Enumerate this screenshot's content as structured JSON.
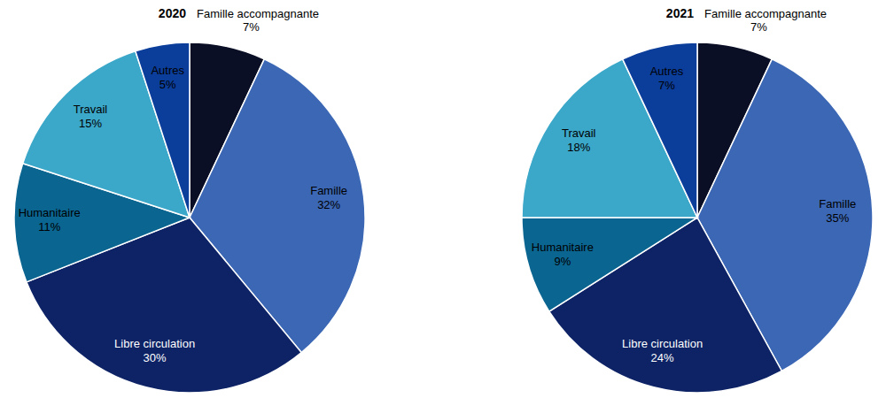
{
  "chart_data": [
    {
      "type": "pie",
      "title": "2020",
      "categories": [
        "Famille accompagnante",
        "Famille",
        "Libre circulation",
        "Humanitaire",
        "Travail",
        "Autres"
      ],
      "values": [
        7,
        32,
        30,
        11,
        15,
        5
      ],
      "value_labels": [
        "7%",
        "32%",
        "30%",
        "11%",
        "15%",
        "5%"
      ],
      "colors": [
        "#0a0f26",
        "#3b67b4",
        "#0d2366",
        "#0a6591",
        "#3ba7c9",
        "#0b3d9b"
      ],
      "data_labels": true
    },
    {
      "type": "pie",
      "title": "2021",
      "categories": [
        "Famille accompagnante",
        "Famille",
        "Libre circulation",
        "Humanitaire",
        "Travail",
        "Autres"
      ],
      "values": [
        7,
        35,
        24,
        9,
        18,
        7
      ],
      "value_labels": [
        "7%",
        "35%",
        "24%",
        "9%",
        "18%",
        "7%"
      ],
      "colors": [
        "#0a0f26",
        "#3b67b4",
        "#0d2366",
        "#0a6591",
        "#3ba7c9",
        "#0b3d9b"
      ],
      "data_labels": true
    }
  ]
}
